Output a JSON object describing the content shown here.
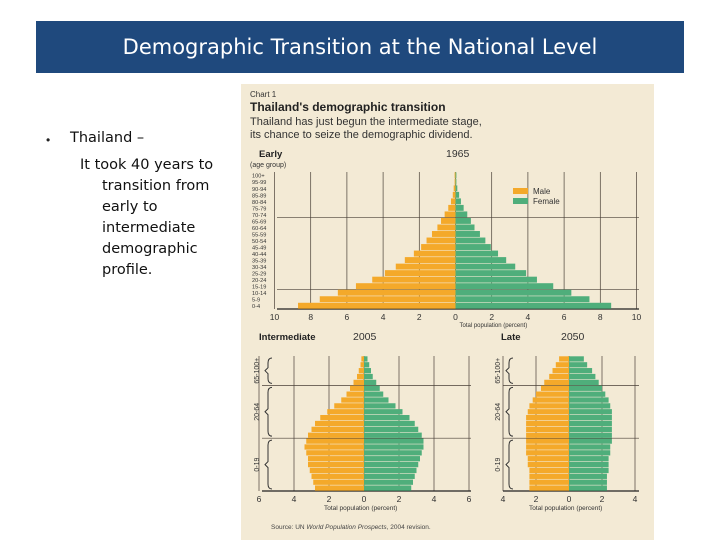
{
  "slide": {
    "title": "Demographic Transition at the National Level",
    "bullet_marker": "•",
    "bullet_heading": "Thailand –",
    "bullet_lines": [
      "It took 40 years to",
      "transition from",
      "early to",
      "intermediate",
      "demographic",
      "profile."
    ]
  },
  "colors": {
    "title_bg": "#1f497d",
    "male": "#f4a92a",
    "female": "#4fae7b",
    "panel_bg": "#f3ead5",
    "text_dark": "#222222"
  },
  "chart_data": [
    {
      "type": "bar",
      "chart_label": "Chart 1",
      "title": "Thailand's demographic transition",
      "subtitle": "Thailand has just begun the intermediate stage, its chance to seize the demographic dividend.",
      "stage": "Early",
      "year": "1965",
      "ylabel": "(age group)",
      "xlabel": "Total population (percent)",
      "legend": [
        "Male",
        "Female"
      ],
      "legend_position": "right",
      "categories": [
        "100+",
        "95-99",
        "90-94",
        "85-89",
        "80-84",
        "75-79",
        "70-74",
        "65-69",
        "60-64",
        "55-59",
        "50-54",
        "45-49",
        "40-44",
        "35-39",
        "30-34",
        "25-29",
        "20-24",
        "15-19",
        "10-14",
        "5-9",
        "0-4"
      ],
      "series": [
        {
          "name": "Male",
          "values": [
            0.05,
            0.05,
            0.1,
            0.15,
            0.25,
            0.4,
            0.6,
            0.8,
            1.0,
            1.3,
            1.6,
            1.9,
            2.3,
            2.8,
            3.3,
            3.9,
            4.6,
            5.5,
            6.5,
            7.5,
            8.7
          ]
        },
        {
          "name": "Female",
          "values": [
            0.05,
            0.05,
            0.1,
            0.2,
            0.3,
            0.45,
            0.65,
            0.85,
            1.05,
            1.35,
            1.65,
            1.95,
            2.35,
            2.8,
            3.3,
            3.9,
            4.5,
            5.4,
            6.4,
            7.4,
            8.6
          ]
        }
      ],
      "xticks": [
        "10",
        "8",
        "6",
        "4",
        "2",
        "0",
        "2",
        "4",
        "6",
        "8",
        "10"
      ],
      "xlim": [
        -10,
        10
      ],
      "grid": true
    },
    {
      "type": "bar",
      "stage": "Intermediate",
      "year": "2005",
      "xlabel": "Total population (percent)",
      "age_groups": [
        "65-100+",
        "20-64",
        "0-19"
      ],
      "series": [
        {
          "name": "Male",
          "values": [
            0.15,
            0.2,
            0.3,
            0.4,
            0.6,
            0.8,
            1.0,
            1.3,
            1.7,
            2.1,
            2.5,
            2.8,
            3.0,
            3.2,
            3.3,
            3.4,
            3.3,
            3.2,
            3.2,
            3.1,
            3.0,
            2.9,
            2.8
          ]
        },
        {
          "name": "Female",
          "values": [
            0.2,
            0.3,
            0.4,
            0.5,
            0.7,
            0.9,
            1.1,
            1.4,
            1.8,
            2.2,
            2.6,
            2.9,
            3.1,
            3.3,
            3.4,
            3.4,
            3.3,
            3.2,
            3.1,
            3.0,
            2.9,
            2.8,
            2.7
          ]
        }
      ],
      "xticks": [
        "6",
        "4",
        "2",
        "0",
        "2",
        "4",
        "6"
      ],
      "xlim": [
        -6,
        6
      ]
    },
    {
      "type": "bar",
      "stage": "Late",
      "year": "2050",
      "xlabel": "Total population (percent)",
      "age_groups": [
        "65-100+",
        "20-64",
        "0-19"
      ],
      "series": [
        {
          "name": "Male",
          "values": [
            0.6,
            0.8,
            1.0,
            1.2,
            1.5,
            1.7,
            2.0,
            2.2,
            2.4,
            2.5,
            2.6,
            2.6,
            2.6,
            2.6,
            2.6,
            2.6,
            2.6,
            2.5,
            2.5,
            2.4,
            2.4,
            2.4,
            2.4
          ]
        },
        {
          "name": "Female",
          "values": [
            0.9,
            1.1,
            1.4,
            1.6,
            1.8,
            2.0,
            2.2,
            2.4,
            2.5,
            2.6,
            2.6,
            2.6,
            2.6,
            2.6,
            2.6,
            2.5,
            2.5,
            2.4,
            2.4,
            2.4,
            2.3,
            2.3,
            2.3
          ]
        }
      ],
      "xticks": [
        "4",
        "2",
        "0",
        "2",
        "4"
      ],
      "xlim": [
        -4,
        4
      ]
    }
  ],
  "source_prefix": "Source: UN ",
  "source_italic": "World Population Prospects",
  "source_suffix": ", 2004 revision."
}
